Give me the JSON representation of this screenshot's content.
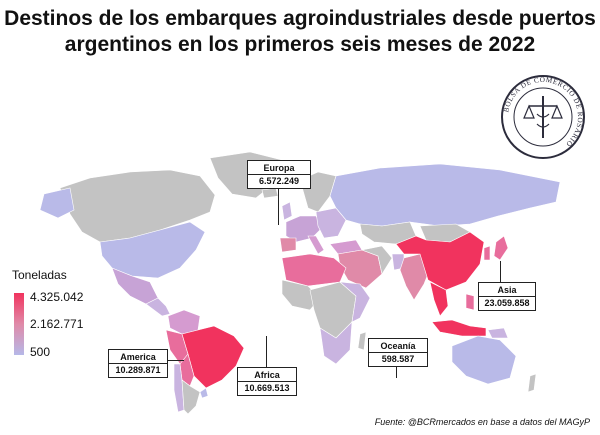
{
  "title": "Destinos de los embarques agroindustriales desde puertos argentinos en los primeros seis meses de 2022",
  "seal_text": "BOLSA DE COMERCIO DE ROSARIO",
  "legend": {
    "title": "Toneladas",
    "max_label": "4.325.042",
    "mid_label": "2.162.771",
    "min_label": "500",
    "color_high": "#f1335e",
    "color_low": "#b6b8e8",
    "color_no_data": "#c3c3c3"
  },
  "regions": [
    {
      "id": "europa",
      "name": "Europa",
      "value": "6.572.249"
    },
    {
      "id": "asia",
      "name": "Asia",
      "value": "23.059.858"
    },
    {
      "id": "oceania",
      "name": "Oceanía",
      "value": "598.587"
    },
    {
      "id": "africa",
      "name": "Africa",
      "value": "10.669.513"
    },
    {
      "id": "america",
      "name": "America",
      "value": "10.289.871"
    }
  ],
  "source": "Fuente: @BCRmercados en base a datos del MAGyP"
}
